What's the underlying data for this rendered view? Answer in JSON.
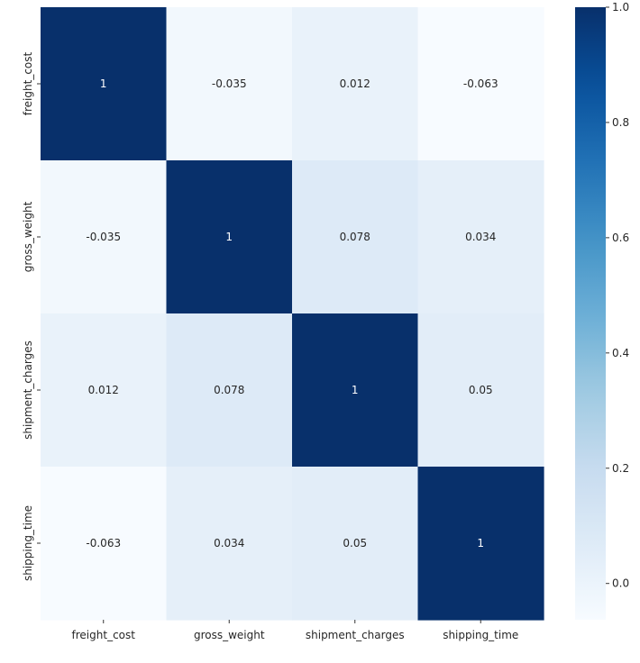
{
  "chart_data": {
    "type": "heatmap",
    "title": "",
    "xlabel": "",
    "ylabel": "",
    "x_categories": [
      "freight_cost",
      "gross_weight",
      "shipment_charges",
      "shipping_time"
    ],
    "y_categories": [
      "freight_cost",
      "gross_weight",
      "shipment_charges",
      "shipping_time"
    ],
    "values": [
      [
        1,
        -0.035,
        0.012,
        -0.063
      ],
      [
        -0.035,
        1,
        0.078,
        0.034
      ],
      [
        0.012,
        0.078,
        1,
        0.05
      ],
      [
        -0.063,
        0.034,
        0.05,
        1
      ]
    ],
    "annotations": [
      [
        "1",
        "-0.035",
        "0.012",
        "-0.063"
      ],
      [
        "-0.035",
        "1",
        "0.078",
        "0.034"
      ],
      [
        "0.012",
        "0.078",
        "1",
        "0.05"
      ],
      [
        "-0.063",
        "0.034",
        "0.05",
        "1"
      ]
    ],
    "colormap": "Blues",
    "vmin": -0.063,
    "vmax": 1.0,
    "colorbar_ticks": [
      {
        "value": 0.0,
        "label": "0.0"
      },
      {
        "value": 0.2,
        "label": "0.2"
      },
      {
        "value": 0.4,
        "label": "0.4"
      },
      {
        "value": 0.6,
        "label": "0.6"
      },
      {
        "value": 0.8,
        "label": "0.8"
      },
      {
        "value": 1.0,
        "label": "1.0"
      }
    ],
    "legend": "colorbar-right"
  }
}
